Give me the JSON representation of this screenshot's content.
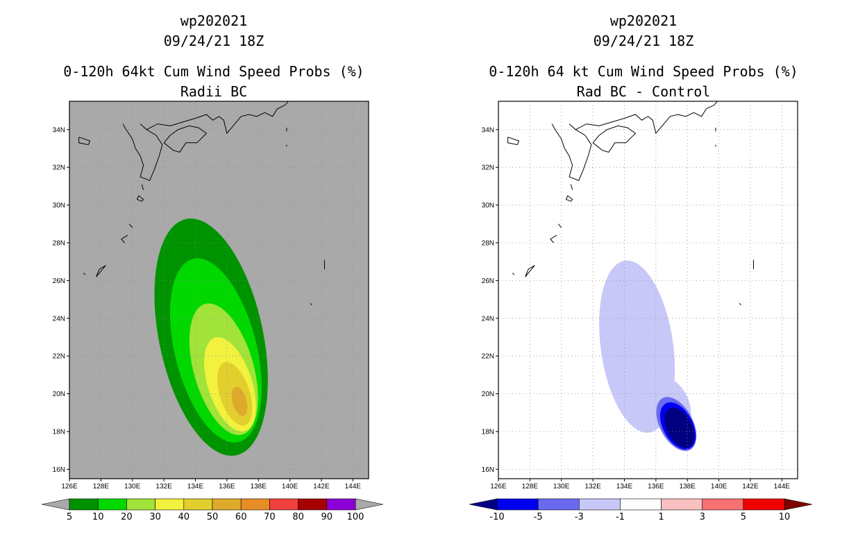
{
  "left": {
    "title_lines": [
      "wp202021",
      "09/24/21 18Z",
      "0-120h 64kt Cum Wind Speed Probs (%)",
      "Radii BC"
    ]
  },
  "right": {
    "title_lines": [
      "wp202021",
      "09/24/21 18Z",
      "0-120h 64 kt Cum Wind Speed Probs (%)",
      "Rad BC - Control"
    ]
  },
  "chart_data": [
    {
      "type": "contour-map",
      "title": "0-120h 64kt Cum Wind Speed Probs (%)",
      "subtitle": "Radii BC",
      "storm": "wp202021",
      "valid": "09/24/21 18Z",
      "x_ticks": [
        "126E",
        "128E",
        "130E",
        "132E",
        "134E",
        "136E",
        "138E",
        "140E",
        "142E",
        "144E"
      ],
      "y_ticks": [
        "16N",
        "18N",
        "20N",
        "22N",
        "24N",
        "26N",
        "28N",
        "30N",
        "32N",
        "34N"
      ],
      "xlim": [
        126,
        145
      ],
      "ylim": [
        15.5,
        35.5
      ],
      "background": "#a9a9a9",
      "levels": [
        "5",
        "10",
        "20",
        "30",
        "40",
        "50",
        "60",
        "70",
        "80",
        "90",
        "100"
      ],
      "level_colors": [
        "#009300",
        "#00d800",
        "#a2e33a",
        "#f2f23e",
        "#e2cf2d",
        "#deaa2b",
        "#e88c26",
        "#f0403d",
        "#a60000",
        "#8c00d8"
      ],
      "filled_max_level_index": 5,
      "max_prob_center": [
        136.8,
        19.6
      ]
    },
    {
      "type": "contour-map",
      "title": "0-120h 64 kt Cum Wind Speed Probs (%)",
      "subtitle": "Rad BC - Control",
      "storm": "wp202021",
      "valid": "09/24/21 18Z",
      "x_ticks": [
        "126E",
        "128E",
        "130E",
        "132E",
        "134E",
        "136E",
        "138E",
        "140E",
        "142E",
        "144E"
      ],
      "y_ticks": [
        "16N",
        "18N",
        "20N",
        "22N",
        "24N",
        "26N",
        "28N",
        "30N",
        "32N",
        "34N"
      ],
      "xlim": [
        126,
        145
      ],
      "ylim": [
        15.5,
        35.5
      ],
      "background": "#ffffff",
      "levels": [
        "-10",
        "-5",
        "-3",
        "-1",
        "1",
        "3",
        "5",
        "10"
      ],
      "level_colors": [
        "#000080",
        "#0000f0",
        "#6a6af0",
        "#c8c8f8",
        "#ffffff",
        "#f8c0c0",
        "#f87070",
        "#f00000",
        "#800000"
      ],
      "min_diff_center": [
        137.5,
        18.2
      ]
    }
  ]
}
